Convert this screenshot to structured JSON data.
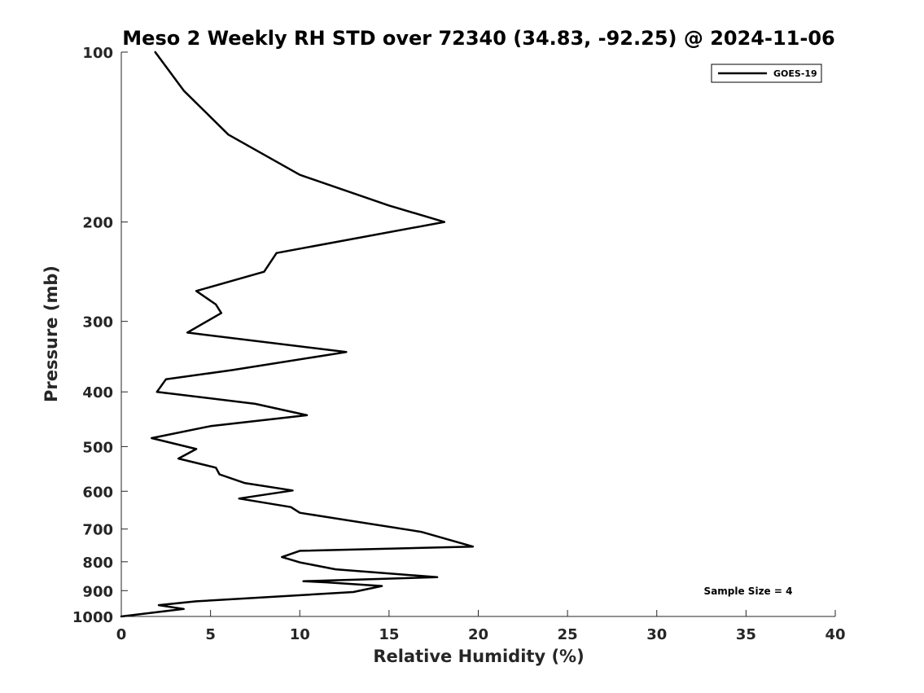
{
  "chart_data": {
    "type": "line",
    "title": "Meso 2 Weekly RH STD over 72340 (34.83, -92.25) @ 2024-11-06",
    "xlabel": "Relative Humidity (%)",
    "ylabel": "Pressure (mb)",
    "xlim": [
      0,
      40
    ],
    "ylim": [
      100,
      1000
    ],
    "y_scale": "log",
    "y_reversed": true,
    "grid": false,
    "legend_position": "top-right",
    "x_ticks": [
      "0",
      "5",
      "10",
      "15",
      "20",
      "25",
      "30",
      "35",
      "40"
    ],
    "y_ticks": [
      "100",
      "200",
      "300",
      "400",
      "500",
      "600",
      "700",
      "800",
      "900",
      "1000"
    ],
    "annotation": "Sample Size = 4",
    "series": [
      {
        "name": "GOES-19",
        "color": "#000000",
        "x": [
          1.9,
          3.5,
          6.0,
          10.0,
          15.0,
          18.1,
          8.7,
          8.0,
          4.2,
          5.3,
          5.6,
          3.7,
          12.6,
          6.2,
          2.5,
          2.0,
          7.5,
          10.4,
          5.0,
          1.7,
          4.2,
          3.2,
          5.3,
          5.5,
          6.9,
          9.6,
          6.6,
          9.5,
          10.0,
          16.8,
          18.8,
          19.7,
          10.0,
          9.0,
          10.0,
          12.0,
          17.7,
          10.2,
          11.5,
          14.6,
          13.0,
          4.2,
          2.1,
          3.5,
          0.0
        ],
        "y": [
          100,
          117,
          140,
          165,
          187,
          200,
          227,
          245,
          265,
          280,
          290,
          314,
          340,
          366,
          380,
          400,
          420,
          440,
          460,
          483,
          505,
          525,
          545,
          560,
          580,
          598,
          618,
          640,
          655,
          708,
          738,
          752,
          765,
          785,
          802,
          825,
          852,
          866,
          870,
          883,
          905,
          940,
          955,
          970,
          1000
        ]
      }
    ]
  }
}
